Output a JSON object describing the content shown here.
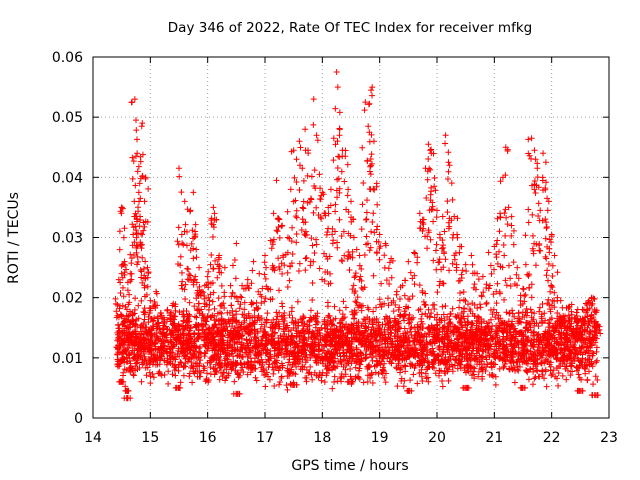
{
  "chart_data": {
    "type": "scatter",
    "title": "Day 346 of 2022, Rate Of TEC Index for receiver mfkg",
    "xlabel": "GPS time / hours",
    "ylabel": "ROTI / TECUs",
    "xlim": [
      14,
      23
    ],
    "ylim": [
      0,
      0.06
    ],
    "xticks": [
      {
        "value": 14,
        "label": "14"
      },
      {
        "value": 15,
        "label": "15"
      },
      {
        "value": 16,
        "label": "16"
      },
      {
        "value": 17,
        "label": "17"
      },
      {
        "value": 18,
        "label": "18"
      },
      {
        "value": 19,
        "label": "19"
      },
      {
        "value": 20,
        "label": "20"
      },
      {
        "value": 21,
        "label": "21"
      },
      {
        "value": 22,
        "label": "22"
      },
      {
        "value": 23,
        "label": "23"
      }
    ],
    "yticks": [
      {
        "value": 0,
        "label": "0"
      },
      {
        "value": 0.01,
        "label": "0.01"
      },
      {
        "value": 0.02,
        "label": "0.02"
      },
      {
        "value": 0.03,
        "label": "0.03"
      },
      {
        "value": 0.04,
        "label": "0.04"
      },
      {
        "value": 0.05,
        "label": "0.05"
      },
      {
        "value": 0.06,
        "label": "0.06"
      }
    ],
    "grid": true,
    "marker": "+",
    "color": "#ff0000",
    "series": [
      {
        "name": "ROTI",
        "description": "dense cloud of ROTI samples mostly 0.005-0.02 TECU/s between 14.4 h and 22.8 h",
        "points": [
          [
            14.45,
            0.023
          ],
          [
            14.5,
            0.035
          ],
          [
            14.52,
            0.0348
          ],
          [
            14.55,
            0.026
          ],
          [
            14.6,
            0.0033
          ],
          [
            14.62,
            0.0045
          ],
          [
            14.65,
            0.024
          ],
          [
            14.7,
            0.0305
          ],
          [
            14.72,
            0.036
          ],
          [
            14.73,
            0.053
          ],
          [
            14.75,
            0.0495
          ],
          [
            14.77,
            0.044
          ],
          [
            14.78,
            0.041
          ],
          [
            14.8,
            0.0375
          ],
          [
            14.82,
            0.0335
          ],
          [
            14.85,
            0.0485
          ],
          [
            14.86,
            0.049
          ],
          [
            14.88,
            0.0325
          ],
          [
            14.9,
            0.036
          ],
          [
            14.92,
            0.04
          ],
          [
            14.95,
            0.025
          ],
          [
            15.0,
            0.0195
          ],
          [
            15.1,
            0.021
          ],
          [
            15.2,
            0.017
          ],
          [
            15.3,
            0.018
          ],
          [
            15.4,
            0.019
          ],
          [
            15.5,
            0.0415
          ],
          [
            15.55,
            0.0305
          ],
          [
            15.6,
            0.036
          ],
          [
            15.65,
            0.0347
          ],
          [
            15.7,
            0.0345
          ],
          [
            15.75,
            0.0375
          ],
          [
            15.78,
            0.031
          ],
          [
            15.8,
            0.028
          ],
          [
            15.85,
            0.025
          ],
          [
            15.9,
            0.021
          ],
          [
            15.95,
            0.022
          ],
          [
            16.0,
            0.0235
          ],
          [
            16.05,
            0.0255
          ],
          [
            16.1,
            0.035
          ],
          [
            16.12,
            0.034
          ],
          [
            16.15,
            0.033
          ],
          [
            16.2,
            0.027
          ],
          [
            16.3,
            0.025
          ],
          [
            16.4,
            0.022
          ],
          [
            16.5,
            0.029
          ],
          [
            16.6,
            0.022
          ],
          [
            16.7,
            0.023
          ],
          [
            16.8,
            0.026
          ],
          [
            16.9,
            0.024
          ],
          [
            17.0,
            0.027
          ],
          [
            17.1,
            0.0295
          ],
          [
            17.15,
            0.034
          ],
          [
            17.2,
            0.0395
          ],
          [
            17.25,
            0.033
          ],
          [
            17.3,
            0.032
          ],
          [
            17.4,
            0.03
          ],
          [
            17.45,
            0.038
          ],
          [
            17.5,
            0.0445
          ],
          [
            17.55,
            0.043
          ],
          [
            17.6,
            0.046
          ],
          [
            17.65,
            0.0415
          ],
          [
            17.7,
            0.048
          ],
          [
            17.75,
            0.0445
          ],
          [
            17.8,
            0.0365
          ],
          [
            17.85,
            0.053
          ],
          [
            17.9,
            0.047
          ],
          [
            17.95,
            0.0405
          ],
          [
            18.0,
            0.0375
          ],
          [
            18.05,
            0.034
          ],
          [
            18.1,
            0.0315
          ],
          [
            18.15,
            0.038
          ],
          [
            18.2,
            0.0465
          ],
          [
            18.25,
            0.0575
          ],
          [
            18.27,
            0.055
          ],
          [
            18.3,
            0.047
          ],
          [
            18.35,
            0.0445
          ],
          [
            18.4,
            0.0435
          ],
          [
            18.45,
            0.038
          ],
          [
            18.5,
            0.036
          ],
          [
            18.55,
            0.03
          ],
          [
            18.6,
            0.028
          ],
          [
            18.65,
            0.027
          ],
          [
            18.7,
            0.0355
          ],
          [
            18.75,
            0.0525
          ],
          [
            18.8,
            0.0485
          ],
          [
            18.82,
            0.0475
          ],
          [
            18.85,
            0.0545
          ],
          [
            18.87,
            0.055
          ],
          [
            18.9,
            0.046
          ],
          [
            18.95,
            0.039
          ],
          [
            19.0,
            0.0305
          ],
          [
            19.1,
            0.029
          ],
          [
            19.2,
            0.0265
          ],
          [
            19.3,
            0.021
          ],
          [
            19.4,
            0.022
          ],
          [
            19.5,
            0.026
          ],
          [
            19.6,
            0.0275
          ],
          [
            19.7,
            0.034
          ],
          [
            19.75,
            0.033
          ],
          [
            19.8,
            0.0415
          ],
          [
            19.85,
            0.0455
          ],
          [
            19.88,
            0.0445
          ],
          [
            19.9,
            0.044
          ],
          [
            19.95,
            0.0385
          ],
          [
            20.0,
            0.0345
          ],
          [
            20.05,
            0.0305
          ],
          [
            20.1,
            0.0335
          ],
          [
            20.15,
            0.047
          ],
          [
            20.2,
            0.0425
          ],
          [
            20.22,
            0.042
          ],
          [
            20.3,
            0.0335
          ],
          [
            20.35,
            0.0305
          ],
          [
            20.4,
            0.0285
          ],
          [
            20.5,
            0.0255
          ],
          [
            20.6,
            0.027
          ],
          [
            20.7,
            0.024
          ],
          [
            20.8,
            0.0235
          ],
          [
            20.9,
            0.0275
          ],
          [
            21.0,
            0.0285
          ],
          [
            21.05,
            0.0295
          ],
          [
            21.1,
            0.034
          ],
          [
            21.15,
            0.04
          ],
          [
            21.2,
            0.045
          ],
          [
            21.25,
            0.035
          ],
          [
            21.3,
            0.032
          ],
          [
            21.4,
            0.025
          ],
          [
            21.5,
            0.0215
          ],
          [
            21.55,
            0.0255
          ],
          [
            21.6,
            0.0325
          ],
          [
            21.65,
            0.0465
          ],
          [
            21.7,
            0.0445
          ],
          [
            21.72,
            0.043
          ],
          [
            21.75,
            0.0415
          ],
          [
            21.8,
            0.0345
          ],
          [
            21.85,
            0.044
          ],
          [
            21.9,
            0.0425
          ],
          [
            21.92,
            0.0365
          ],
          [
            21.95,
            0.036
          ],
          [
            22.0,
            0.0305
          ],
          [
            22.05,
            0.027
          ],
          [
            22.1,
            0.02
          ],
          [
            22.2,
            0.017
          ],
          [
            22.3,
            0.0185
          ],
          [
            22.4,
            0.0165
          ],
          [
            22.5,
            0.0165
          ],
          [
            22.6,
            0.0175
          ],
          [
            22.65,
            0.0195
          ],
          [
            22.7,
            0.02
          ],
          [
            22.75,
            0.018
          ],
          [
            22.8,
            0.0155
          ],
          [
            14.5,
            0.006
          ],
          [
            15.5,
            0.005
          ],
          [
            16.5,
            0.004
          ],
          [
            17.5,
            0.0055
          ],
          [
            18.5,
            0.006
          ],
          [
            19.5,
            0.0045
          ],
          [
            20.5,
            0.005
          ],
          [
            21.5,
            0.005
          ],
          [
            22.5,
            0.0045
          ],
          [
            22.75,
            0.0038
          ]
        ],
        "dense_band": {
          "x_range": [
            14.4,
            22.8
          ],
          "y_range": [
            0.004,
            0.02
          ],
          "approx_count": 4000
        }
      }
    ]
  }
}
